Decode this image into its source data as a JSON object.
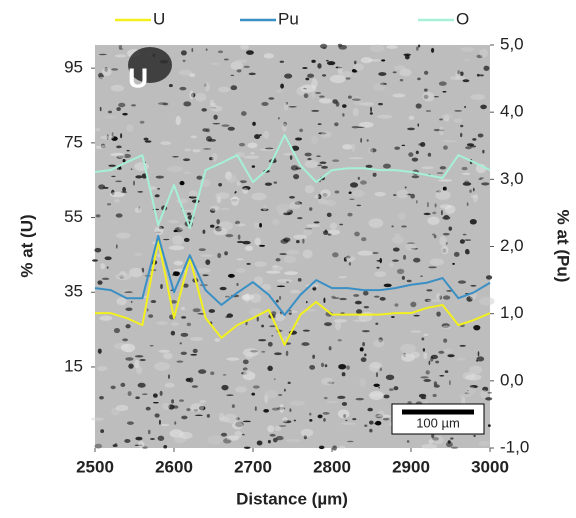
{
  "chart_data": {
    "type": "line",
    "x_label": "Distance (µm)",
    "y_label": "% at (U)",
    "y2_label": "% at (Pu)",
    "annotations": [
      "U",
      "100 µm"
    ],
    "x": [
      2500,
      2520,
      2540,
      2560,
      2580,
      2600,
      2620,
      2640,
      2660,
      2680,
      2700,
      2720,
      2740,
      2760,
      2780,
      2800,
      2820,
      2840,
      2860,
      2880,
      2900,
      2920,
      2940,
      2960,
      2980,
      3000
    ],
    "series": [
      {
        "name": "U",
        "color": "#f2f01e",
        "axis": "y",
        "values": [
          29.4,
          29.4,
          28.1,
          26.2,
          49.0,
          28.1,
          44.2,
          28.1,
          22.8,
          26.2,
          28.1,
          30.3,
          20.9,
          29.0,
          32.4,
          29.0,
          29.0,
          29.0,
          29.0,
          29.4,
          29.4,
          30.8,
          31.6,
          26.2,
          27.6,
          29.4
        ]
      },
      {
        "name": "Pu",
        "color": "#3a8fc4",
        "axis": "y2",
        "values": [
          1.38,
          1.35,
          1.23,
          1.23,
          2.16,
          1.32,
          1.87,
          1.35,
          1.13,
          1.31,
          1.47,
          1.28,
          0.98,
          1.28,
          1.5,
          1.38,
          1.38,
          1.35,
          1.35,
          1.38,
          1.43,
          1.46,
          1.53,
          1.23,
          1.32,
          1.46
        ]
      },
      {
        "name": "O",
        "color": "#a6f0d6",
        "axis": "y",
        "values": [
          67.2,
          67.7,
          69.8,
          71.7,
          53.0,
          63.7,
          52.2,
          67.7,
          69.6,
          71.7,
          64.5,
          68.2,
          77.1,
          69.0,
          64.5,
          67.7,
          68.2,
          68.2,
          67.7,
          67.7,
          67.2,
          66.4,
          65.6,
          71.7,
          69.8,
          67.7
        ]
      }
    ],
    "xlim": [
      2500,
      3000
    ],
    "xticks": [
      2500,
      2600,
      2700,
      2800,
      2900,
      3000
    ],
    "ylim": [
      -6.7,
      101.2
    ],
    "yticks": [
      15,
      35,
      55,
      75,
      95
    ],
    "y2lim": [
      -1,
      5
    ],
    "y2ticks": [
      {
        "value": -1,
        "label": "-1,0"
      },
      {
        "value": 0,
        "label": "0,0"
      },
      {
        "value": 1,
        "label": "1,0"
      },
      {
        "value": 2,
        "label": "2,0"
      },
      {
        "value": 3,
        "label": "3,0"
      },
      {
        "value": 4,
        "label": "4,0"
      },
      {
        "value": 5,
        "label": "5,0"
      }
    ],
    "legend": "top"
  }
}
